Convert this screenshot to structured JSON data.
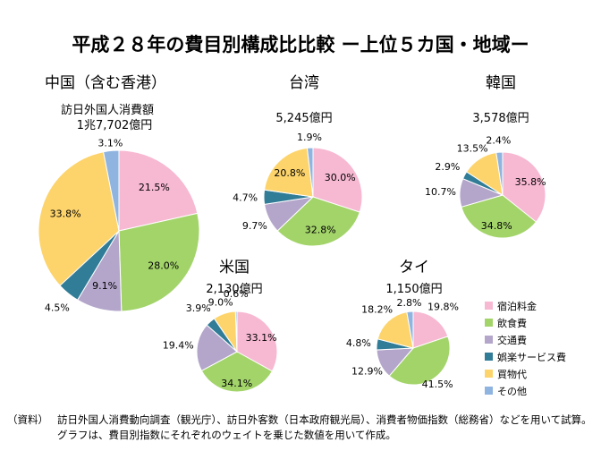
{
  "title": "平成２８年の費目別構成比比較 ー上位５カ国・地域ー",
  "amount_label": "訪日外国人消費額",
  "categories": [
    "宿泊料金",
    "飲食費",
    "交通費",
    "娯楽サービス費",
    "買物代",
    "その他"
  ],
  "colors": [
    "#F7B8D2",
    "#A3D46A",
    "#B3A6CA",
    "#317C97",
    "#FDD46B",
    "#8FB4E0"
  ],
  "chart_data": [
    {
      "type": "pie",
      "title": "中国（含む香港）",
      "amount": "1兆7,702億円",
      "values": [
        21.5,
        28.0,
        9.1,
        4.5,
        33.8,
        3.1
      ],
      "labels": [
        "21.5%",
        "28.0%",
        "9.1%",
        "4.5%",
        "33.8%",
        "3.1%"
      ]
    },
    {
      "type": "pie",
      "title": "台湾",
      "amount": "5,245億円",
      "values": [
        30.0,
        32.8,
        9.7,
        4.7,
        20.8,
        1.9
      ],
      "labels": [
        "30.0%",
        "32.8%",
        "9.7%",
        "4.7%",
        "20.8%",
        "1.9%"
      ]
    },
    {
      "type": "pie",
      "title": "韓国",
      "amount": "3,578億円",
      "values": [
        35.8,
        34.8,
        10.7,
        2.9,
        13.5,
        2.4
      ],
      "labels": [
        "35.8%",
        "34.8%",
        "10.7%",
        "2.9%",
        "13.5%",
        "2.4%"
      ]
    },
    {
      "type": "pie",
      "title": "米国",
      "amount": "2,130億円",
      "values": [
        33.1,
        34.1,
        19.4,
        3.9,
        9.0,
        0.6
      ],
      "labels": [
        "33.1%",
        "34.1%",
        "19.4%",
        "3.9%",
        "9.0%",
        "0.6%"
      ]
    },
    {
      "type": "pie",
      "title": "タイ",
      "amount": "1,150億円",
      "values": [
        19.8,
        41.5,
        12.9,
        4.8,
        18.2,
        2.8
      ],
      "labels": [
        "19.8%",
        "41.5%",
        "12.9%",
        "4.8%",
        "18.2%",
        "2.8%"
      ]
    }
  ],
  "source": {
    "tag": "（資料）",
    "text": "訪日外国人消費動向調査（観光庁）、訪日外客数（日本政府観光局）、消費者物価指数（総務省）などを用いて試算。グラフは、費目別指数にそれぞれのウェイトを乗じた数値を用いて作成。"
  }
}
